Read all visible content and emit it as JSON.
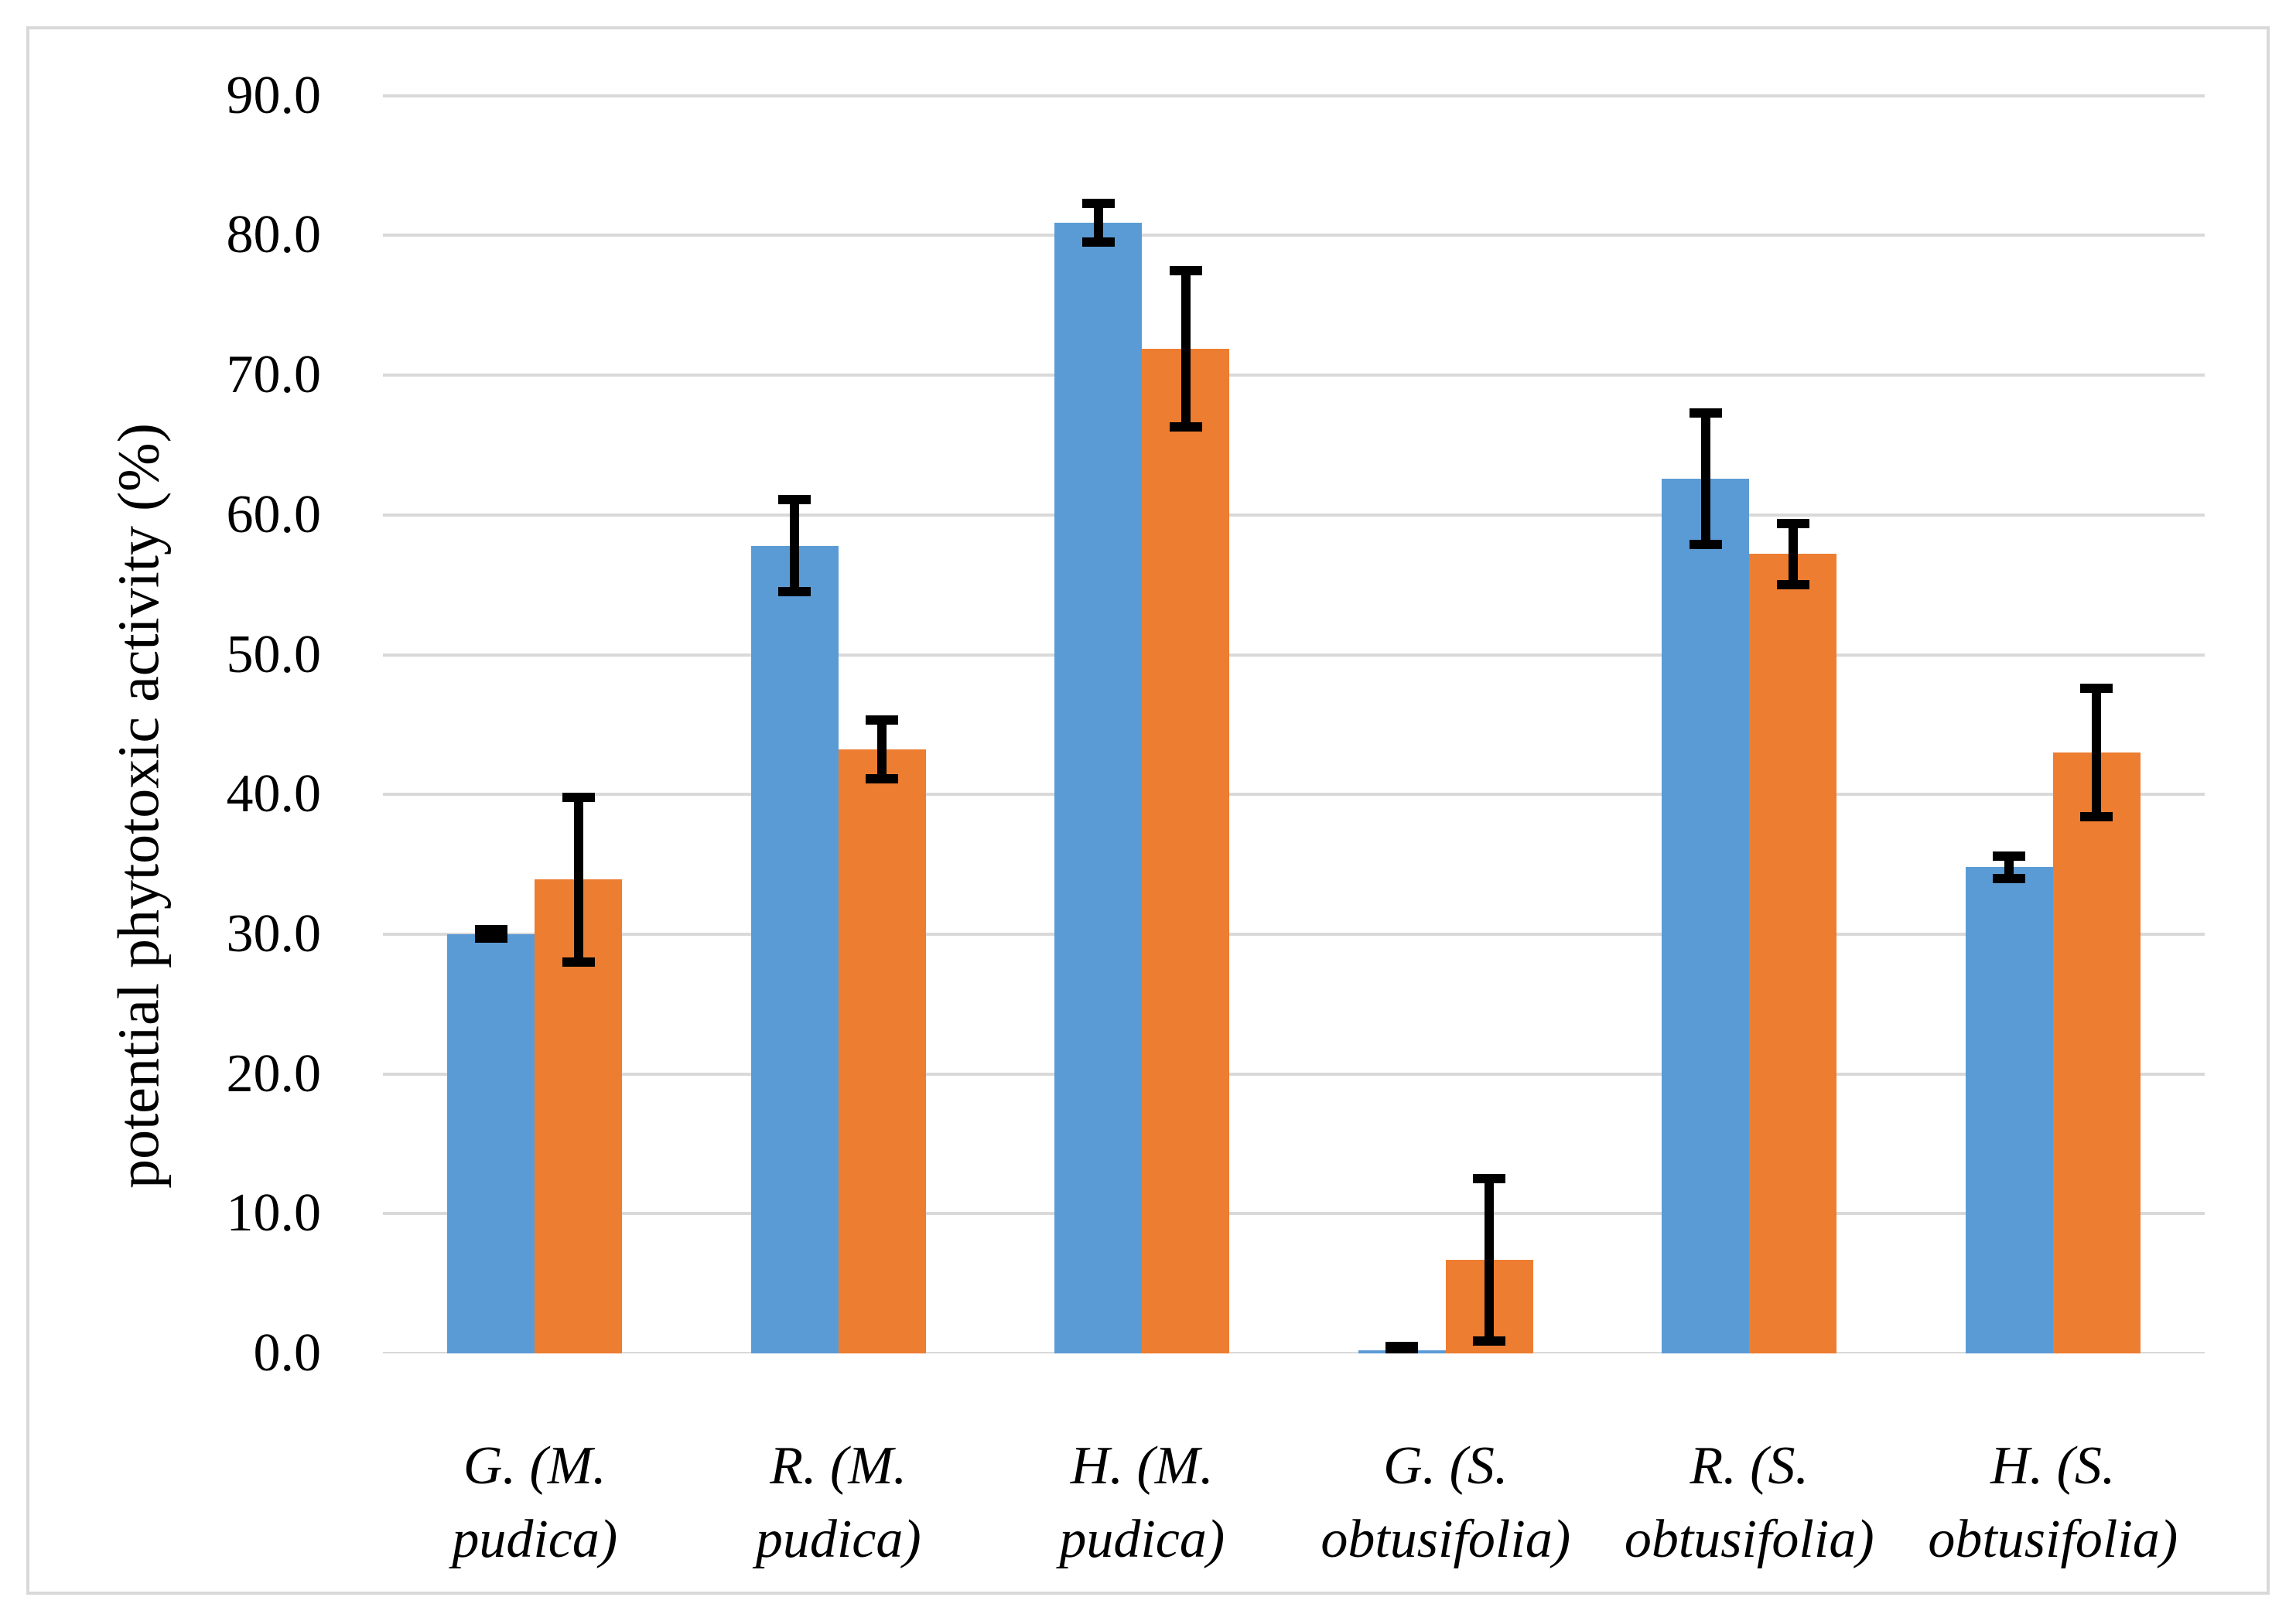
{
  "chart_data": {
    "type": "bar",
    "title": "",
    "xlabel": "",
    "ylabel": "potential phytotoxic activity (%)",
    "ylim": [
      0,
      90
    ],
    "ytick_step": 10,
    "ytick_labels": [
      "0.0",
      "10.0",
      "20.0",
      "30.0",
      "40.0",
      "50.0",
      "60.0",
      "70.0",
      "80.0",
      "90.0"
    ],
    "grid": true,
    "legend": false,
    "categories": [
      "G. (M. pudica)",
      "R. (M. pudica)",
      "H. (M. pudica)",
      "G. (S. obtusifolia)",
      "R. (S. obtusifolia)",
      "H. (S. obtusifolia)"
    ],
    "category_label_lines": [
      [
        "G. (M.",
        "pudica)"
      ],
      [
        "R. (M.",
        "pudica)"
      ],
      [
        "H. (M.",
        "pudica)"
      ],
      [
        "G. (S.",
        "obtusifolia)"
      ],
      [
        "R. (S.",
        "obtusifolia)"
      ],
      [
        "H. (S.",
        "obtusifolia)"
      ]
    ],
    "series": [
      {
        "color": "#5B9BD5",
        "values": [
          30.0,
          57.8,
          80.9,
          0.2,
          62.6,
          34.8
        ],
        "errors": [
          0.3,
          3.3,
          1.4,
          0.3,
          4.7,
          0.8
        ]
      },
      {
        "color": "#ED7D31",
        "values": [
          33.9,
          43.2,
          71.9,
          6.7,
          57.2,
          43.0
        ],
        "errors": [
          5.9,
          2.1,
          5.6,
          5.8,
          2.2,
          4.6
        ]
      }
    ],
    "error_bar_color": "#000000",
    "gridline_color": "#D9D9D9",
    "border_color": "#D9D9D9",
    "background": "#FFFFFF"
  }
}
